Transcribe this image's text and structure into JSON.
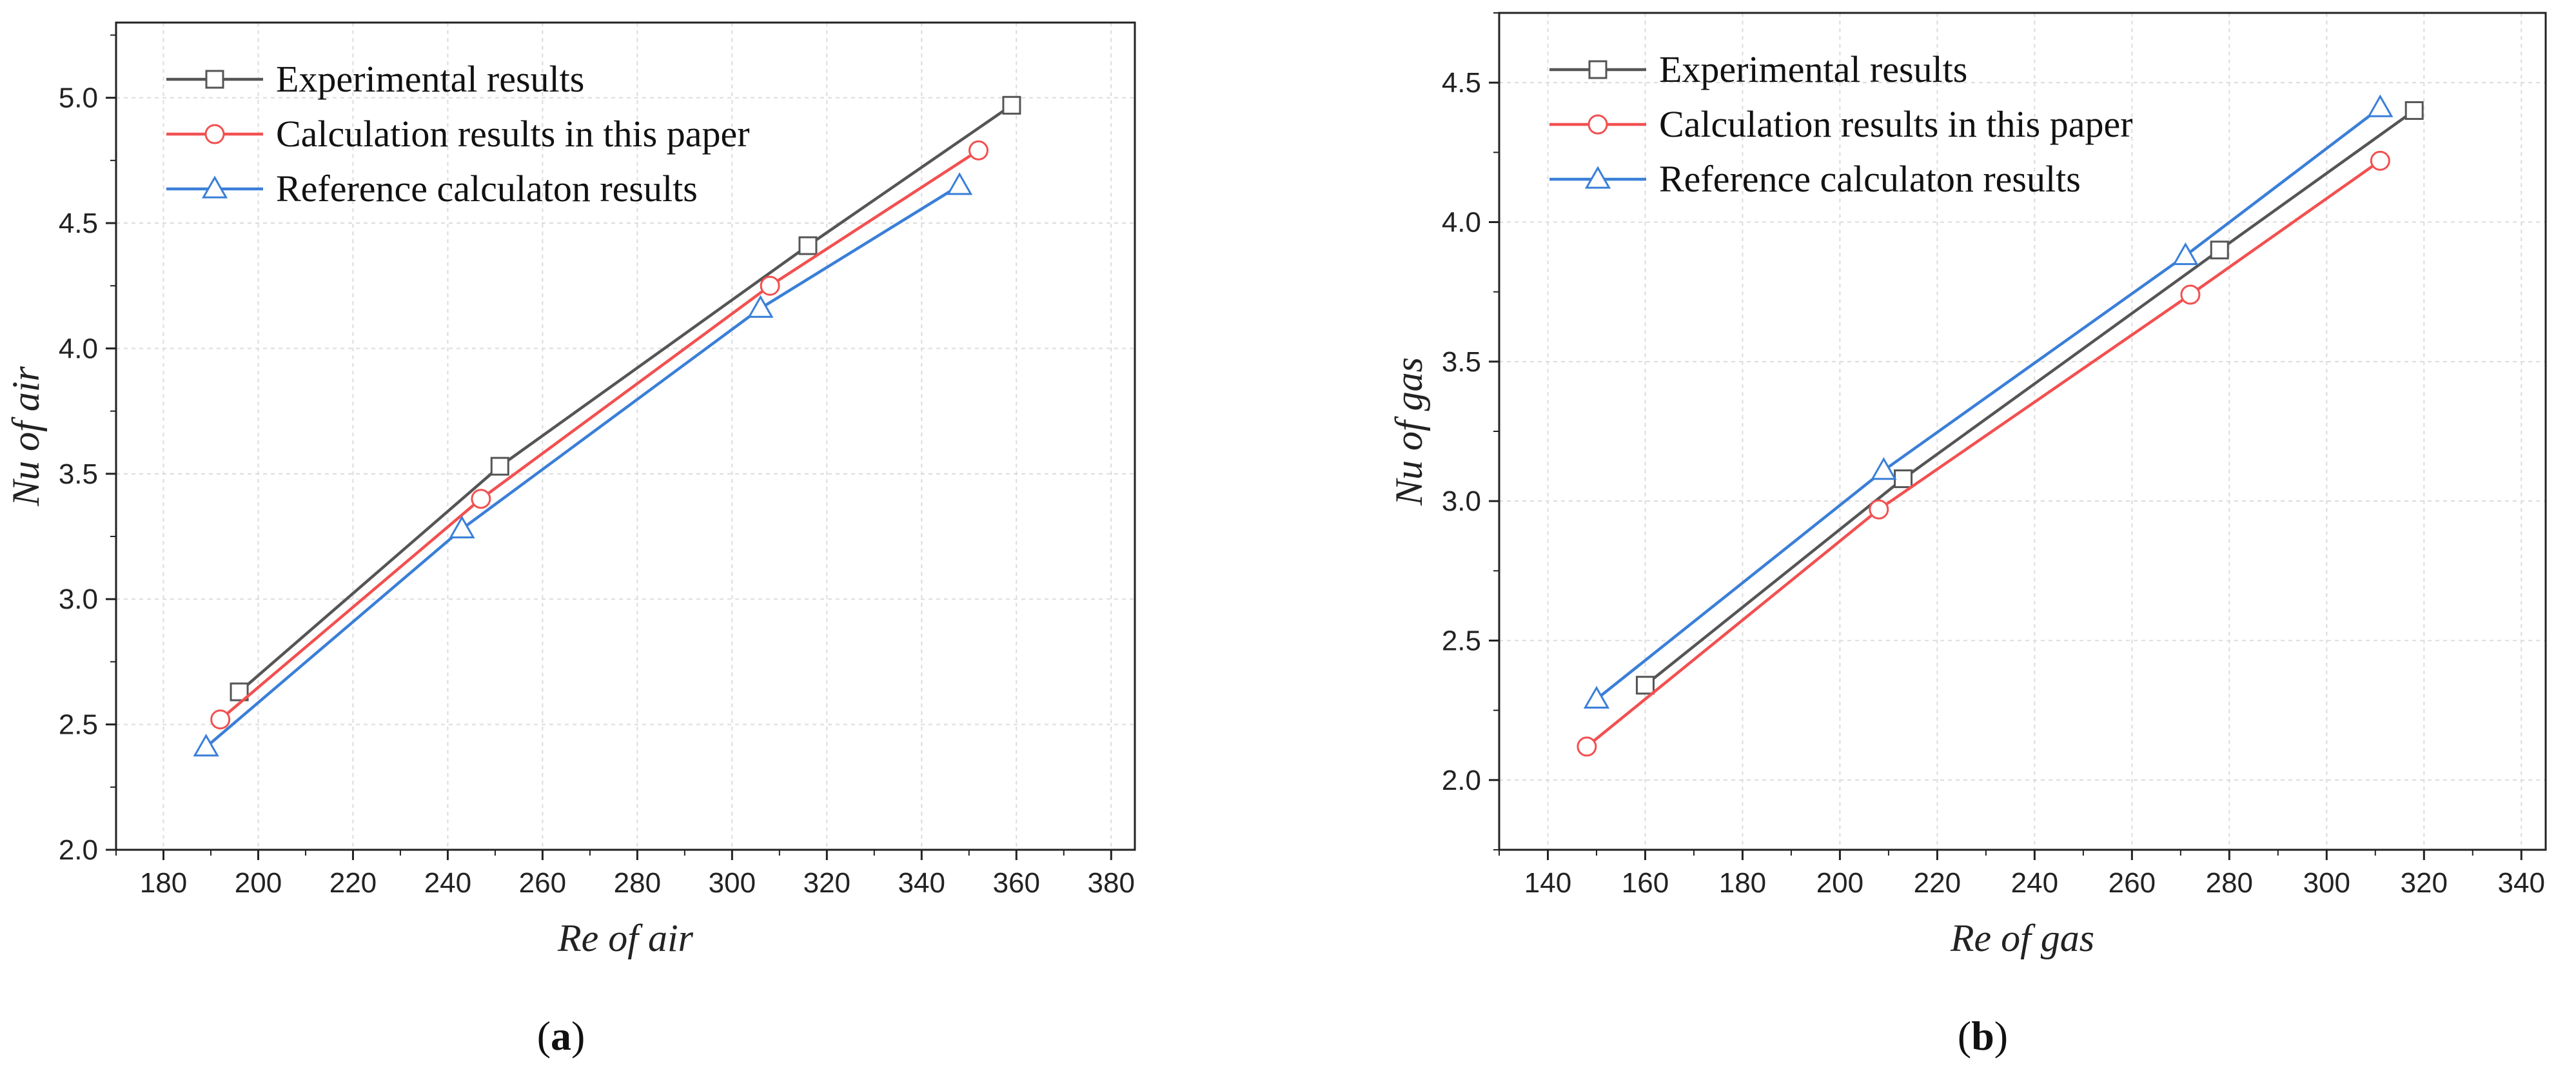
{
  "chart_data": [
    {
      "type": "line",
      "caption_letter": "a",
      "xlabel": "Re of air",
      "ylabel": "Nu of air",
      "xlim": [
        170,
        385
      ],
      "ylim": [
        2.0,
        5.3
      ],
      "xticks": [
        180,
        200,
        220,
        240,
        260,
        280,
        300,
        320,
        340,
        360,
        380
      ],
      "yticks": [
        2.0,
        2.5,
        3.0,
        3.5,
        4.0,
        4.5,
        5.0
      ],
      "ytick_labels": [
        "2.0",
        "2.5",
        "3.0",
        "3.5",
        "4.0",
        "4.5",
        "5.0"
      ],
      "grid": true,
      "legend_position": "top-left",
      "series": [
        {
          "name": "Experimental results",
          "marker": "square",
          "color": "#555555",
          "x": [
            196,
            251,
            316,
            359
          ],
          "y": [
            2.63,
            3.53,
            4.41,
            4.97
          ]
        },
        {
          "name": "Calculation results in this paper",
          "marker": "circle",
          "color": "#f25050",
          "x": [
            192,
            247,
            308,
            352
          ],
          "y": [
            2.52,
            3.4,
            4.25,
            4.79
          ]
        },
        {
          "name": "Reference calculaton results",
          "marker": "triangle",
          "color": "#3a7fd8",
          "x": [
            189,
            243,
            306,
            348
          ],
          "y": [
            2.41,
            3.28,
            4.16,
            4.65
          ]
        }
      ]
    },
    {
      "type": "line",
      "caption_letter": "b",
      "xlabel": "Re of gas",
      "ylabel": "Nu of gas",
      "xlim": [
        130,
        345
      ],
      "ylim": [
        1.75,
        4.75
      ],
      "xticks": [
        140,
        160,
        180,
        200,
        220,
        240,
        260,
        280,
        300,
        320,
        340
      ],
      "yticks": [
        2.0,
        2.5,
        3.0,
        3.5,
        4.0,
        4.5
      ],
      "ytick_labels": [
        "2.0",
        "2.5",
        "3.0",
        "3.5",
        "4.0",
        "4.5"
      ],
      "grid": true,
      "legend_position": "top-left",
      "series": [
        {
          "name": "Experimental results",
          "marker": "square",
          "color": "#555555",
          "x": [
            160,
            213,
            278,
            318
          ],
          "y": [
            2.34,
            3.08,
            3.9,
            4.4
          ]
        },
        {
          "name": "Calculation results in this paper",
          "marker": "circle",
          "color": "#f25050",
          "x": [
            148,
            208,
            272,
            311
          ],
          "y": [
            2.12,
            2.97,
            3.74,
            4.22
          ]
        },
        {
          "name": "Reference calculaton results",
          "marker": "triangle",
          "color": "#3a7fd8",
          "x": [
            150,
            209,
            271,
            311
          ],
          "y": [
            2.29,
            3.11,
            3.88,
            4.41
          ]
        }
      ]
    }
  ]
}
